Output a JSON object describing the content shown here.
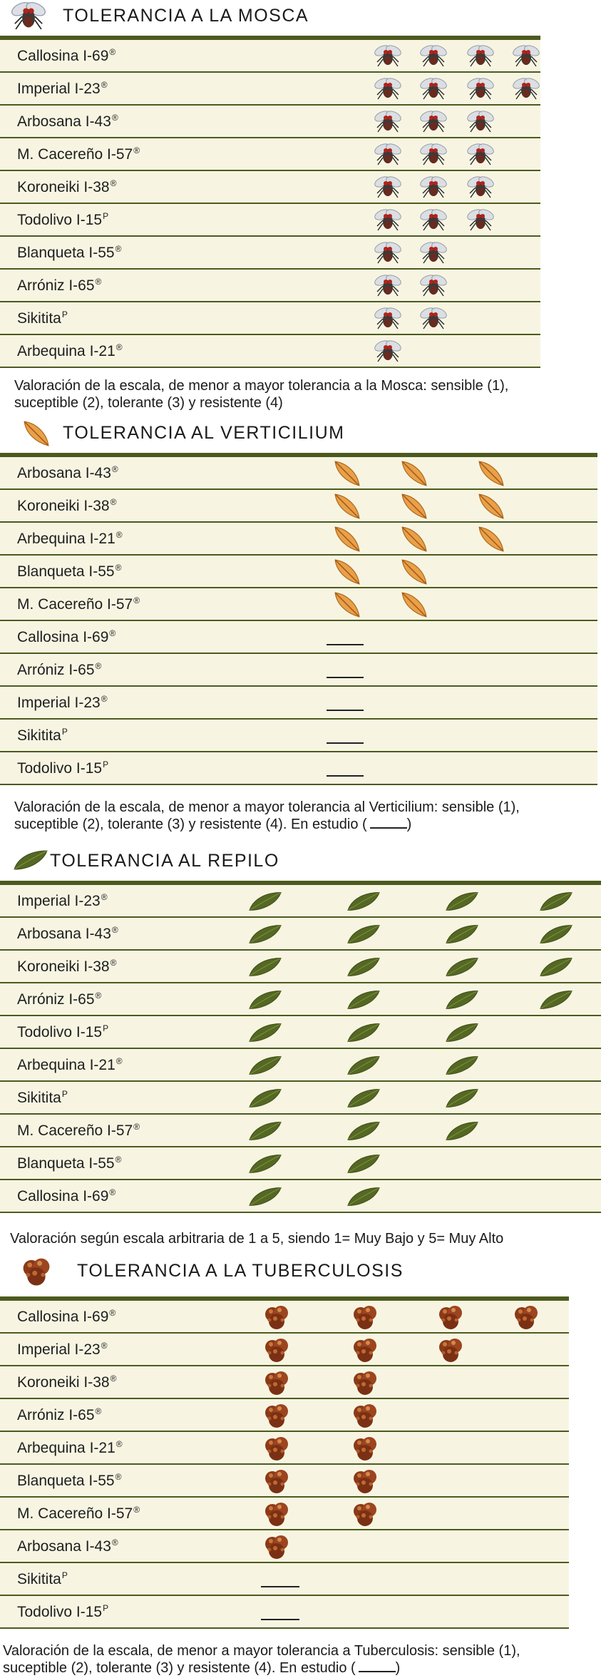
{
  "mosca": {
    "title": "TOLERANCIA A LA MOSCA",
    "icon": "fly-icon",
    "note_lines": [
      "Valoración de la escala, de menor a mayor tolerancia a la Mosca: sensible (1),",
      "suceptible (2), tolerante (3) y resistente (4)"
    ],
    "rows": [
      {
        "name": "Callosina I-69",
        "mark": "®",
        "rating": 4
      },
      {
        "name": "Imperial I-23",
        "mark": "®",
        "rating": 4
      },
      {
        "name": "Arbosana I-43",
        "mark": "®",
        "rating": 3
      },
      {
        "name": "M. Cacereño I-57",
        "mark": "®",
        "rating": 3
      },
      {
        "name": "Koroneiki I-38",
        "mark": "®",
        "rating": 3
      },
      {
        "name": "Todolivo I-15",
        "mark": "P",
        "rating": 3
      },
      {
        "name": "Blanqueta I-55",
        "mark": "®",
        "rating": 2
      },
      {
        "name": "Arróniz I-65",
        "mark": "®",
        "rating": 2
      },
      {
        "name": "Sikitita",
        "mark": "P",
        "rating": 2
      },
      {
        "name": "Arbequina I-21",
        "mark": "®",
        "rating": 1
      }
    ]
  },
  "verticilium": {
    "title": "TOLERANCIA AL VERTICILIUM",
    "icon": "orange-leaf-icon",
    "note_lines": [
      "Valoración de la escala, de menor a mayor tolerancia al Verticilium: sensible (1),",
      "suceptible (2), tolerante (3) y resistente (4). En estudio ("
    ],
    "note_end": ")",
    "rows": [
      {
        "name": "Arbosana I-43",
        "mark": "®",
        "rating": 3
      },
      {
        "name": "Koroneiki I-38",
        "mark": "®",
        "rating": 3
      },
      {
        "name": "Arbequina I-21",
        "mark": "®",
        "rating": 3
      },
      {
        "name": "Blanqueta I-55",
        "mark": "®",
        "rating": 2
      },
      {
        "name": "M. Cacereño I-57",
        "mark": "®",
        "rating": 2
      },
      {
        "name": "Callosina  I-69",
        "mark": "®",
        "rating": 0
      },
      {
        "name": "Arróniz I-65",
        "mark": "®",
        "rating": 0
      },
      {
        "name": "Imperial I-23",
        "mark": "®",
        "rating": 0
      },
      {
        "name": "Sikitita",
        "mark": "P",
        "rating": 0
      },
      {
        "name": "Todolivo I-15",
        "mark": "P",
        "rating": 0
      }
    ]
  },
  "repilo": {
    "title": "TOLERANCIA AL REPILO",
    "icon": "green-leaf-icon",
    "note_lines": [
      "Valoración según escala arbitraria de 1 a 5, siendo 1= Muy Bajo y 5= Muy Alto"
    ],
    "rows": [
      {
        "name": "Imperial I-23",
        "mark": "®",
        "rating": 4
      },
      {
        "name": "Arbosana I-43",
        "mark": "®",
        "rating": 4
      },
      {
        "name": "Koroneiki I-38",
        "mark": "®",
        "rating": 4
      },
      {
        "name": "Arróniz I-65",
        "mark": "®",
        "rating": 4
      },
      {
        "name": "Todolivo I-15",
        "mark": "P",
        "rating": 3
      },
      {
        "name": "Arbequina I-21",
        "mark": "®",
        "rating": 3
      },
      {
        "name": "Sikitita",
        "mark": "P",
        "rating": 3
      },
      {
        "name": "M. Cacereño I-57",
        "mark": "®",
        "rating": 3
      },
      {
        "name": "Blanqueta I-55",
        "mark": "®",
        "rating": 2
      },
      {
        "name": "Callosina  I-69",
        "mark": "®",
        "rating": 2
      }
    ]
  },
  "tuberculosis": {
    "title": "TOLERANCIA A LA TUBERCULOSIS",
    "icon": "gall-icon",
    "note_lines": [
      "Valoración de la escala, de menor a mayor tolerancia a Tuberculosis: sensible (1),",
      "suceptible (2), tolerante (3) y resistente (4). En estudio ("
    ],
    "note_end": ")",
    "rows": [
      {
        "name": "Callosina  I-69",
        "mark": "®",
        "rating": 4
      },
      {
        "name": "Imperial I-23",
        "mark": "®",
        "rating": 3
      },
      {
        "name": "Koroneiki I-38",
        "mark": "®",
        "rating": 2
      },
      {
        "name": "Arróniz I-65",
        "mark": "®",
        "rating": 2
      },
      {
        "name": "Arbequina I-21",
        "mark": "®",
        "rating": 2
      },
      {
        "name": "Blanqueta I-55",
        "mark": "®",
        "rating": 2
      },
      {
        "name": "M. Cacereño I-57",
        "mark": "®",
        "rating": 2
      },
      {
        "name": "Arbosana I-43",
        "mark": "®",
        "rating": 1
      },
      {
        "name": "Sikitita",
        "mark": "P",
        "rating": 0
      },
      {
        "name": "Todolivo I-15",
        "mark": "P",
        "rating": 0
      }
    ]
  }
}
